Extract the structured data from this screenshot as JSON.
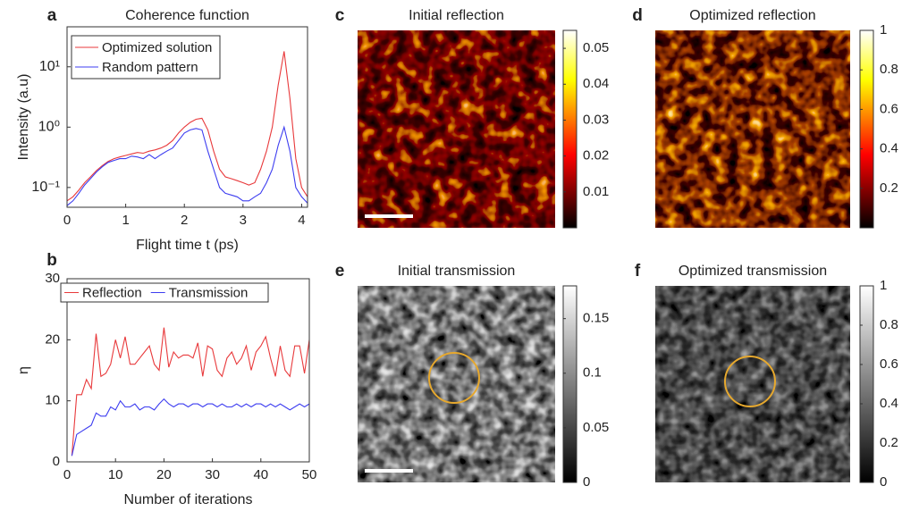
{
  "chart_data": [
    {
      "type": "line",
      "panel": "a",
      "title": "Coherence function",
      "xlabel": "Flight time t (ps)",
      "ylabel": "Intensity (a.u)",
      "x": [
        0,
        0.1,
        0.2,
        0.3,
        0.4,
        0.5,
        0.6,
        0.7,
        0.8,
        0.9,
        1.0,
        1.1,
        1.2,
        1.3,
        1.4,
        1.5,
        1.6,
        1.7,
        1.8,
        1.9,
        2.0,
        2.1,
        2.2,
        2.3,
        2.4,
        2.5,
        2.6,
        2.7,
        2.8,
        2.9,
        3.0,
        3.1,
        3.2,
        3.3,
        3.4,
        3.5,
        3.6,
        3.7,
        3.8,
        3.9,
        4.0,
        4.1
      ],
      "series": [
        {
          "name": "Optimized solution",
          "color": "#e8393b",
          "values": [
            0.06,
            0.07,
            0.09,
            0.12,
            0.15,
            0.19,
            0.23,
            0.27,
            0.3,
            0.32,
            0.34,
            0.36,
            0.38,
            0.37,
            0.4,
            0.42,
            0.45,
            0.5,
            0.6,
            0.8,
            1.0,
            1.2,
            1.35,
            1.4,
            0.9,
            0.4,
            0.2,
            0.15,
            0.14,
            0.13,
            0.12,
            0.11,
            0.12,
            0.2,
            0.4,
            1.0,
            5,
            18,
            3,
            0.3,
            0.1,
            0.07
          ]
        },
        {
          "name": "Random pattern",
          "color": "#3d3df0",
          "values": [
            0.05,
            0.06,
            0.08,
            0.11,
            0.14,
            0.18,
            0.22,
            0.26,
            0.28,
            0.3,
            0.3,
            0.33,
            0.32,
            0.3,
            0.35,
            0.3,
            0.35,
            0.4,
            0.45,
            0.6,
            0.8,
            0.9,
            0.95,
            0.9,
            0.4,
            0.2,
            0.1,
            0.08,
            0.075,
            0.07,
            0.06,
            0.06,
            0.07,
            0.08,
            0.12,
            0.2,
            0.5,
            1.0,
            0.4,
            0.1,
            0.07,
            0.055
          ]
        }
      ],
      "xlim": [
        0,
        4.1
      ],
      "xticks": [
        0,
        1,
        2,
        3,
        4
      ],
      "ylim": [
        0.047,
        46
      ],
      "log_y": true,
      "yticks": [
        {
          "value": 0.1,
          "label": "10⁻¹"
        },
        {
          "value": 1,
          "label": "10⁰"
        },
        {
          "value": 10,
          "label": "10¹"
        }
      ],
      "legend": "upper left"
    },
    {
      "type": "line",
      "panel": "b",
      "xlabel": "Number of iterations",
      "ylabel": "η",
      "x": [
        1,
        2,
        3,
        4,
        5,
        6,
        7,
        8,
        9,
        10,
        11,
        12,
        13,
        14,
        15,
        16,
        17,
        18,
        19,
        20,
        21,
        22,
        23,
        24,
        25,
        26,
        27,
        28,
        29,
        30,
        31,
        32,
        33,
        34,
        35,
        36,
        37,
        38,
        39,
        40,
        41,
        42,
        43,
        44,
        45,
        46,
        47,
        48,
        49,
        50
      ],
      "series": [
        {
          "name": "Reflection",
          "color": "#e8393b",
          "values": [
            1,
            11,
            11,
            13.5,
            12,
            21,
            14,
            14.5,
            16,
            20,
            17,
            20.5,
            16,
            16,
            17,
            18,
            19,
            16,
            15,
            22,
            15.5,
            18,
            17,
            17.5,
            17.5,
            17,
            19.5,
            14,
            19,
            18.5,
            15,
            14,
            17,
            18,
            16,
            17,
            19,
            15,
            18,
            19,
            20.5,
            17,
            14,
            19,
            15,
            14,
            19,
            19,
            14.5,
            20
          ]
        },
        {
          "name": "Transmission",
          "color": "#3d3df0",
          "values": [
            1,
            4.5,
            5,
            5.5,
            6,
            8,
            7.5,
            7.5,
            9,
            8.5,
            10,
            9,
            9,
            9.5,
            8.5,
            9,
            9,
            8.5,
            9.5,
            10.3,
            9.5,
            9,
            9.5,
            9.5,
            9,
            9.5,
            9.5,
            9,
            9.5,
            9.5,
            9,
            9.5,
            9,
            9,
            9.5,
            9,
            9.5,
            9,
            9.5,
            9.5,
            9,
            9.5,
            9,
            9.5,
            9,
            8.5,
            9,
            9.5,
            9,
            9.5
          ]
        }
      ],
      "xlim": [
        0,
        50
      ],
      "xticks": [
        0,
        10,
        20,
        30,
        40,
        50
      ],
      "ylim": [
        0,
        30
      ],
      "yticks": [
        0,
        10,
        20,
        30
      ],
      "legend": "top"
    },
    {
      "type": "heatmap",
      "panel": "c",
      "title": "Initial reflection",
      "colormap": "hot",
      "clim": [
        0,
        0.055
      ],
      "cticks": [
        0.01,
        0.02,
        0.03,
        0.04,
        0.05
      ],
      "scale_bar": true
    },
    {
      "type": "heatmap",
      "panel": "d",
      "title": "Optimized reflection",
      "colormap": "hot",
      "clim": [
        0,
        1
      ],
      "cticks": [
        0.2,
        0.4,
        0.6,
        0.8,
        1
      ],
      "scale_bar": false
    },
    {
      "type": "heatmap",
      "panel": "e",
      "title": "Initial transmission",
      "colormap": "gray",
      "clim": [
        0,
        0.18
      ],
      "cticks": [
        0,
        0.05,
        0.1,
        0.15
      ],
      "scale_bar": true
    },
    {
      "type": "heatmap",
      "panel": "f",
      "title": "Optimized transmission",
      "colormap": "gray",
      "clim": [
        0,
        1
      ],
      "cticks": [
        0,
        0.2,
        0.4,
        0.6,
        0.8,
        1
      ],
      "scale_bar": false
    }
  ]
}
